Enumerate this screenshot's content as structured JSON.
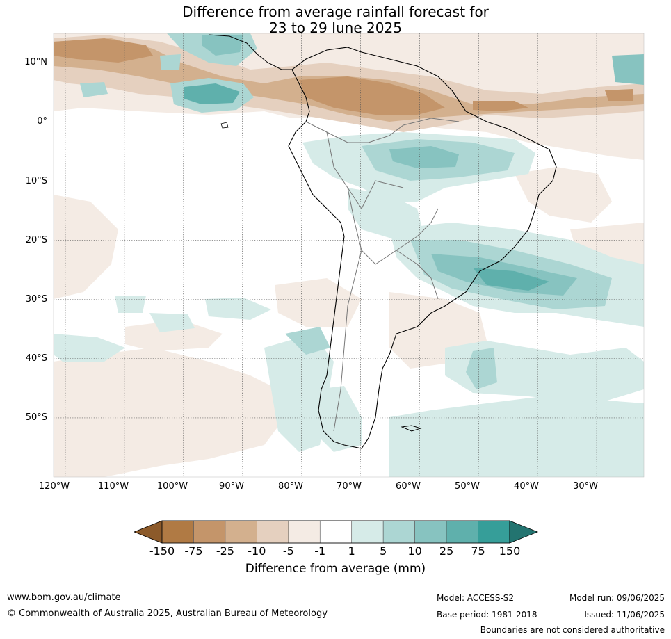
{
  "title": {
    "line1": "Difference from average rainfall forecast for",
    "line2": "23 to 29 June 2025"
  },
  "map": {
    "lat_labels": [
      "10°N",
      "0°",
      "10°S",
      "20°S",
      "30°S",
      "40°S",
      "50°S"
    ],
    "lon_labels": [
      "120°W",
      "110°W",
      "100°W",
      "90°W",
      "80°W",
      "70°W",
      "60°W",
      "50°W",
      "40°W",
      "30°W"
    ],
    "extent": {
      "lon_min": -122,
      "lon_max": -22,
      "lat_min": -60,
      "lat_max": 15
    },
    "gridlines": true
  },
  "colorbar": {
    "tick_labels": [
      "-150",
      "-75",
      "-25",
      "-10",
      "-5",
      "-1",
      "1",
      "5",
      "10",
      "25",
      "75",
      "150"
    ],
    "colors": [
      "#8c5a2a",
      "#b07a44",
      "#c4956a",
      "#d3b08e",
      "#e5d0bf",
      "#f4ebe4",
      "#ffffff",
      "#d6ebe8",
      "#acd6d3",
      "#87c3c0",
      "#5fb0ac",
      "#369e99",
      "#237470"
    ],
    "label": "Difference from average (mm)"
  },
  "footer": {
    "website": "www.bom.gov.au/climate",
    "copyright": "© Commonwealth of Australia 2025, Australian Bureau of Meteorology",
    "model": "Model: ACCESS-S2",
    "base_period": "Base period: 1981-2018",
    "model_run": "Model run: 09/06/2025",
    "issued": "Issued: 11/06/2025",
    "disclaimer": "Boundaries are not considered authoritative"
  }
}
